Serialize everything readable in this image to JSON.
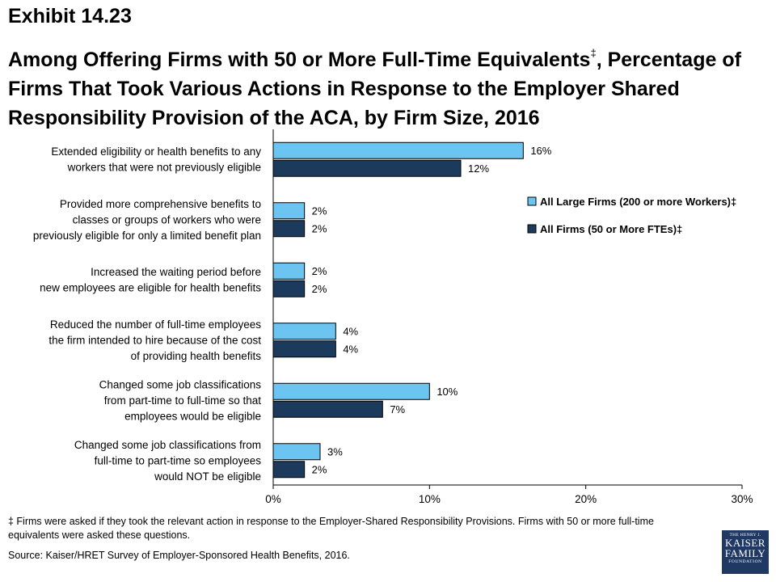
{
  "header": {
    "exhibit": "Exhibit 14.23",
    "title": "Among Offering Firms with 50 or More Full-Time Equivalents",
    "title_mark": "‡",
    "title_rest": ", Percentage of Firms That Took Various Actions in Response to the Employer Shared Responsibility Provision of the ACA, by Firm Size, 2016"
  },
  "chart_data": {
    "type": "bar",
    "orientation": "horizontal",
    "categories": [
      [
        "Extended eligibility or health benefits to any",
        "workers that were not previously eligible"
      ],
      [
        "Provided more comprehensive benefits to",
        "classes or groups of workers who were",
        "previously eligible for only a limited benefit plan"
      ],
      [
        "Increased the waiting period before",
        "new employees are eligible for health benefits"
      ],
      [
        "Reduced the number of full-time employees",
        "the firm intended to hire because of the cost",
        "of providing health benefits"
      ],
      [
        "Changed some job classifications",
        "from part-time to full-time so that",
        "employees would be eligible"
      ],
      [
        "Changed some job classifications from",
        "full-time to part-time so employees",
        "would NOT be eligible"
      ]
    ],
    "series": [
      {
        "name": "All Large Firms (200 or more Workers)‡",
        "color": "#6cc5f0",
        "values": [
          16,
          2,
          2,
          4,
          10,
          3
        ]
      },
      {
        "name": "All Firms (50 or More FTEs)‡",
        "color": "#1b3a5c",
        "values": [
          12,
          2,
          2,
          4,
          7,
          2
        ]
      }
    ],
    "value_suffix": "%",
    "xlim": [
      0,
      30
    ],
    "xticks": [
      0,
      10,
      20,
      30
    ],
    "xtick_labels": [
      "0%",
      "10%",
      "20%",
      "30%"
    ],
    "grid": false,
    "legend_position": "right"
  },
  "footer": {
    "footnote": "‡ Firms  were asked if they took the relevant action in response to the Employer-Shared Responsibility Provisions. Firms with 50 or more full-time equivalents were asked these questions.",
    "source": "Source: Kaiser/HRET Survey of Employer-Sponsored Health Benefits, 2016."
  },
  "logo": {
    "line1": "THE HENRY J.",
    "line2": "KAISER",
    "line3": "FAMILY",
    "line4": "FOUNDATION"
  }
}
